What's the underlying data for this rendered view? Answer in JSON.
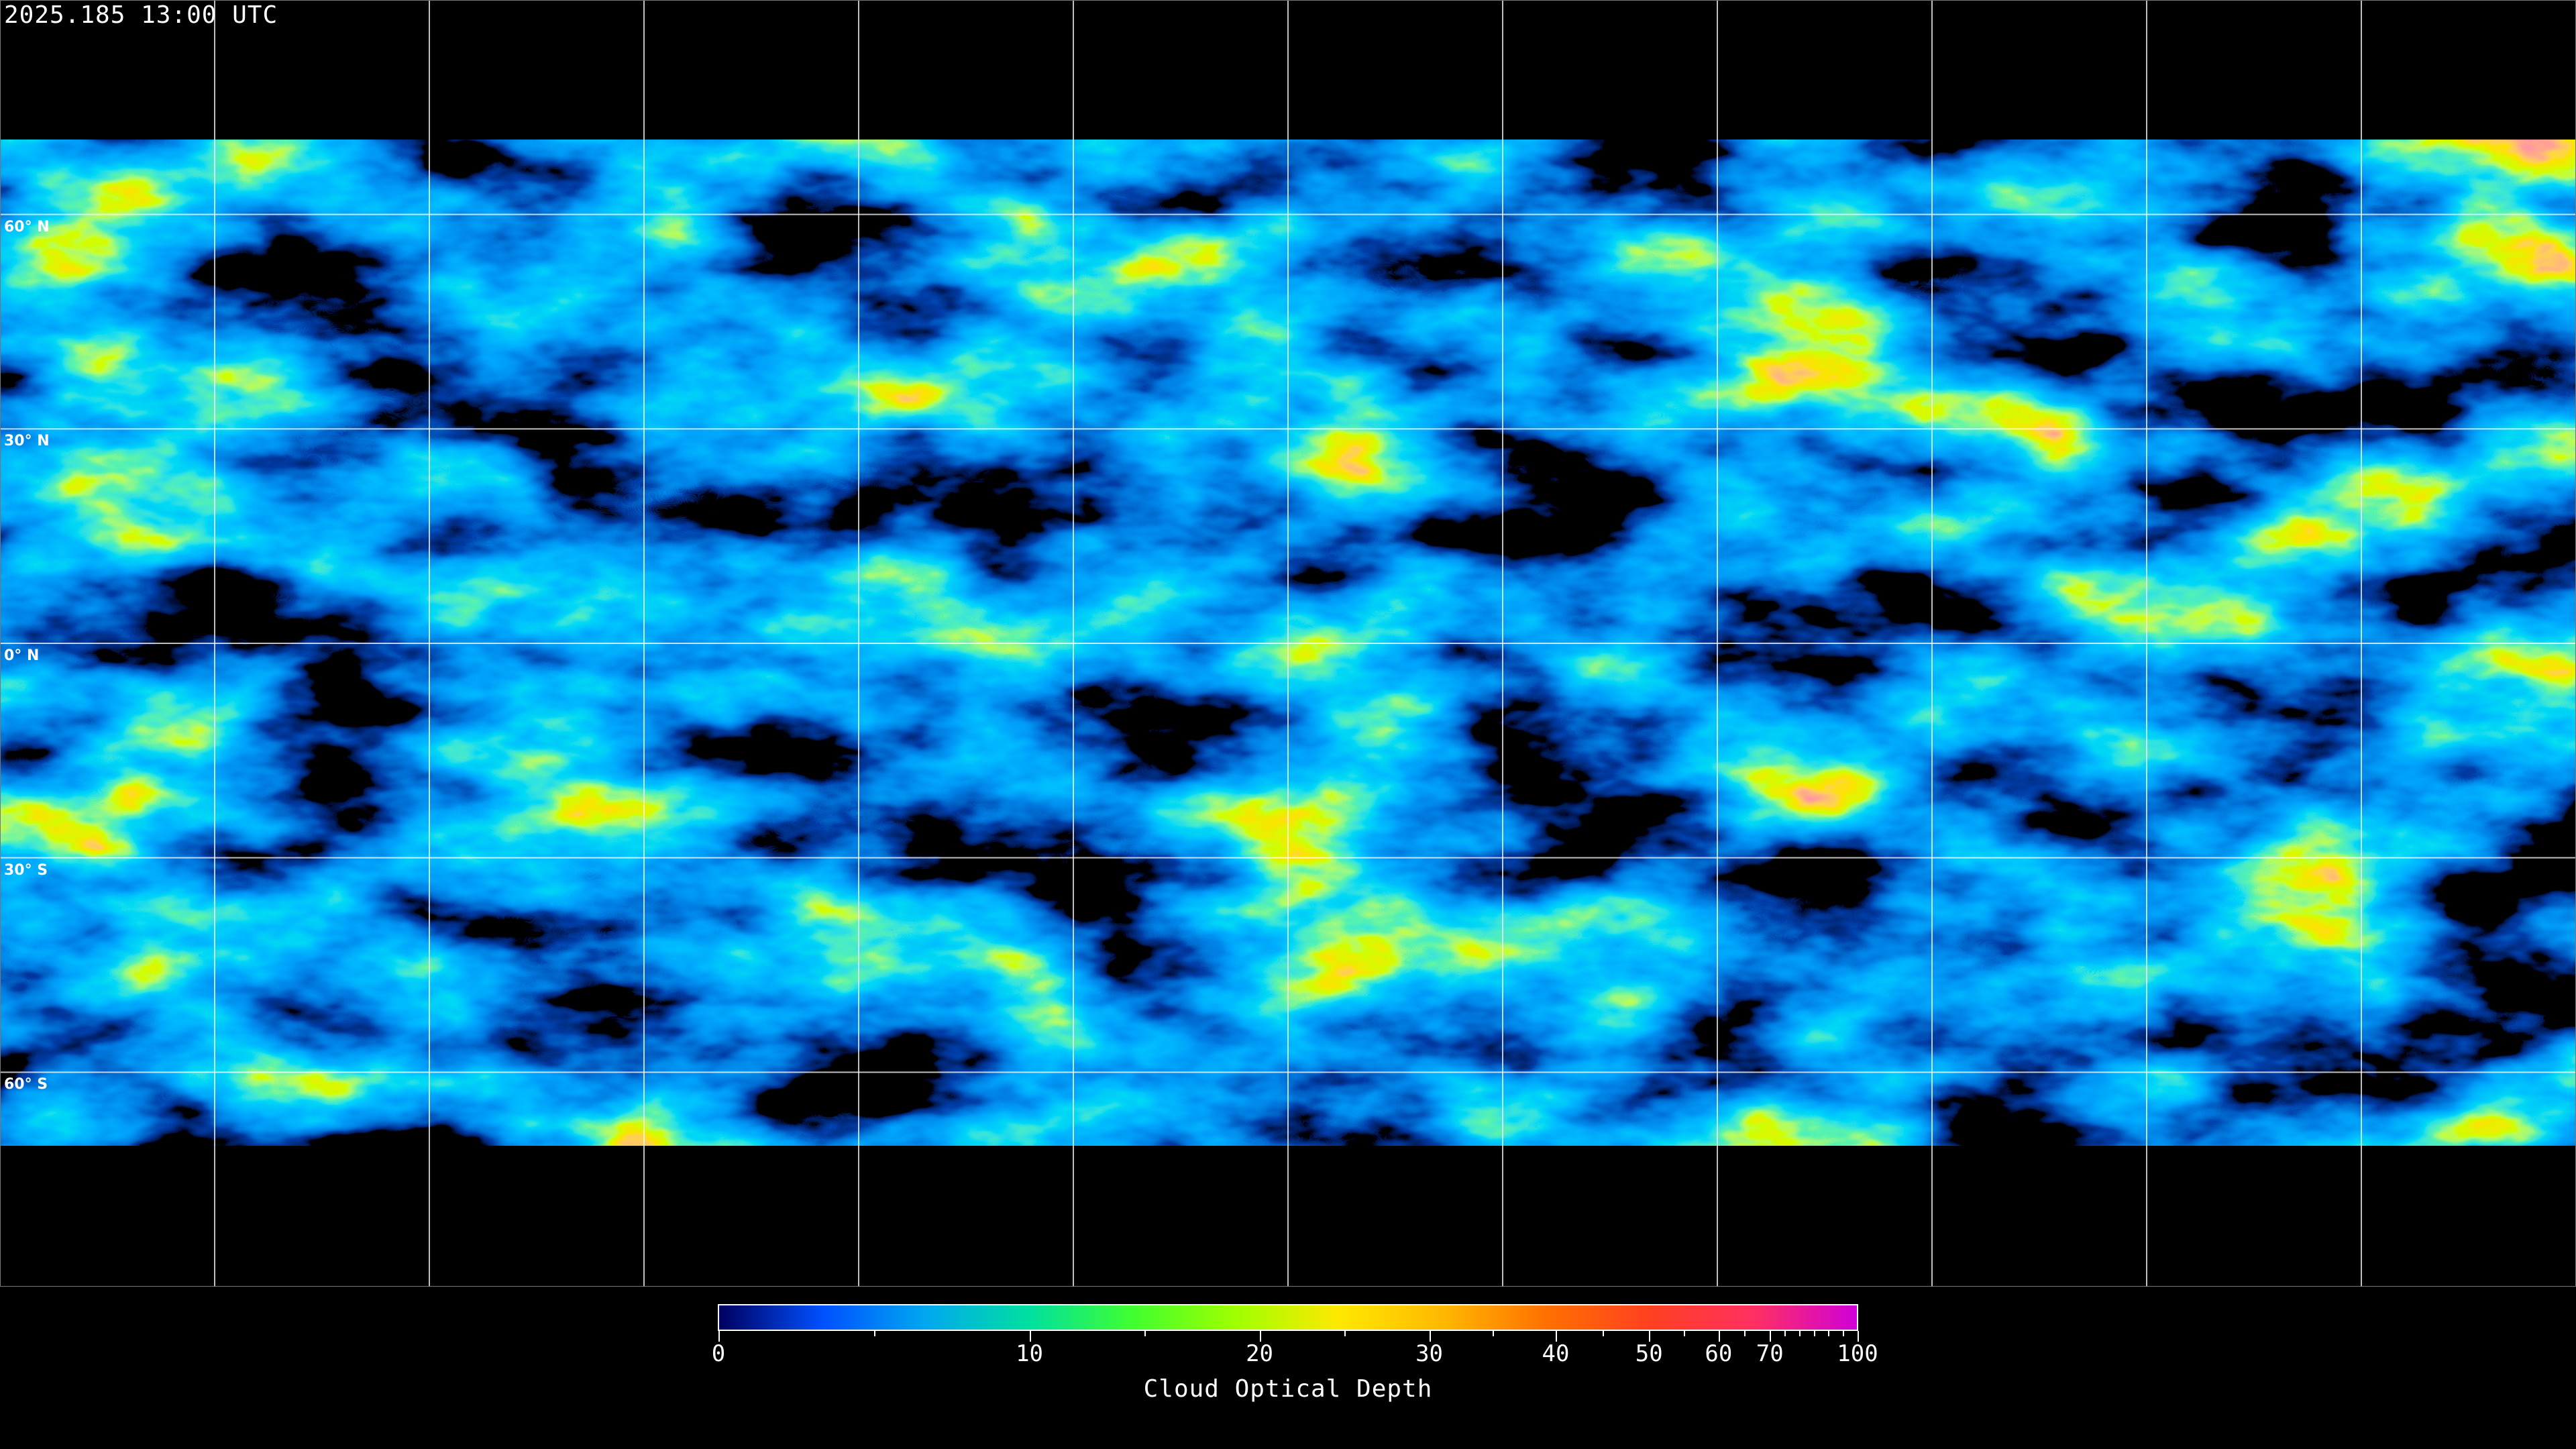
{
  "title": "2025.185 13:00 UTC",
  "map": {
    "projection": "equirectangular",
    "gridlines": "30° spacing",
    "latitude_labels": [
      "60° N",
      "30° N",
      "0° N",
      "30° S",
      "60° S"
    ],
    "coastlines_color": "#ffffff",
    "no_data_color": "#000000"
  },
  "colorbar": {
    "label": "Cloud Optical Depth",
    "ticks": [
      "0",
      "10",
      "20",
      "30",
      "40",
      "50",
      "60",
      "70",
      "100"
    ],
    "range": [
      0,
      100
    ],
    "colors": [
      "#000060",
      "#0050ff",
      "#00a8f0",
      "#00e0a0",
      "#40ff30",
      "#a0ff00",
      "#ffe800",
      "#ffb800",
      "#ff7000",
      "#ff4020",
      "#ff3060",
      "#d000d8"
    ]
  }
}
